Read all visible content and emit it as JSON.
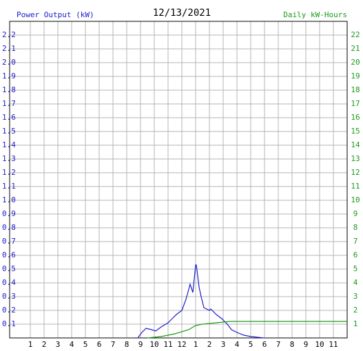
{
  "chart_data": {
    "type": "line",
    "title": "12/13/2021",
    "series": [
      {
        "name": "Power Output (kW)",
        "color": "#1c1ccc",
        "axis": "y",
        "x": [
          8.8,
          9.1,
          9.4,
          9.8,
          10.1,
          10.5,
          11,
          11.3,
          11.6,
          12,
          12.3,
          12.6,
          12.8,
          13.0,
          13.05,
          13.15,
          13.25,
          13.4,
          13.6,
          14,
          14.1,
          14.5,
          14.9,
          15.3,
          15.6,
          16,
          16.5,
          17,
          18
        ],
        "values": [
          0,
          0.04,
          0.07,
          0.06,
          0.05,
          0.08,
          0.11,
          0.14,
          0.17,
          0.2,
          0.28,
          0.39,
          0.33,
          0.53,
          0.53,
          0.45,
          0.37,
          0.3,
          0.22,
          0.2,
          0.21,
          0.17,
          0.14,
          0.1,
          0.06,
          0.04,
          0.02,
          0.01,
          0
        ]
      },
      {
        "name": "Daily kW-Hours",
        "color": "#1a9a1a",
        "axis": "y2",
        "x": [
          9.5,
          10.5,
          11.5,
          12.5,
          13,
          13.5,
          14,
          14.5,
          15,
          15.5,
          16,
          24
        ],
        "values": [
          0,
          0.1,
          0.3,
          0.6,
          0.9,
          1.0,
          1.05,
          1.1,
          1.15,
          1.2,
          1.2,
          1.2
        ]
      }
    ],
    "xlim": [
      -0.5,
      24
    ],
    "xticks": [
      1,
      2,
      3,
      4,
      5,
      6,
      7,
      8,
      9,
      10,
      11,
      12,
      {
        "value": 13,
        "label": "1"
      },
      {
        "value": 14,
        "label": "2"
      },
      {
        "value": 15,
        "label": "3"
      },
      {
        "value": 16,
        "label": "4"
      },
      {
        "value": 17,
        "label": "5"
      },
      {
        "value": 18,
        "label": "6"
      },
      {
        "value": 19,
        "label": "7"
      },
      {
        "value": 20,
        "label": "8"
      },
      {
        "value": 21,
        "label": "9"
      },
      {
        "value": 22,
        "label": "10"
      },
      {
        "value": 23,
        "label": "11"
      }
    ],
    "ylim": [
      0,
      2.3
    ],
    "yticks": [
      0.1,
      0.2,
      0.3,
      0.4,
      0.5,
      0.6,
      0.7,
      0.8,
      0.9,
      {
        "value": 1,
        "label": "1.0"
      },
      1.1,
      1.2,
      1.3,
      1.4,
      1.5,
      1.6,
      1.7,
      1.8,
      1.9,
      {
        "value": 2,
        "label": "2.0"
      },
      2.1,
      2.2
    ],
    "y2lim": [
      0,
      23
    ],
    "y2ticks": [
      1,
      2,
      3,
      4,
      5,
      6,
      7,
      8,
      9,
      10,
      11,
      12,
      13,
      14,
      15,
      16,
      17,
      18,
      19,
      20,
      21,
      22
    ],
    "grid": true
  }
}
